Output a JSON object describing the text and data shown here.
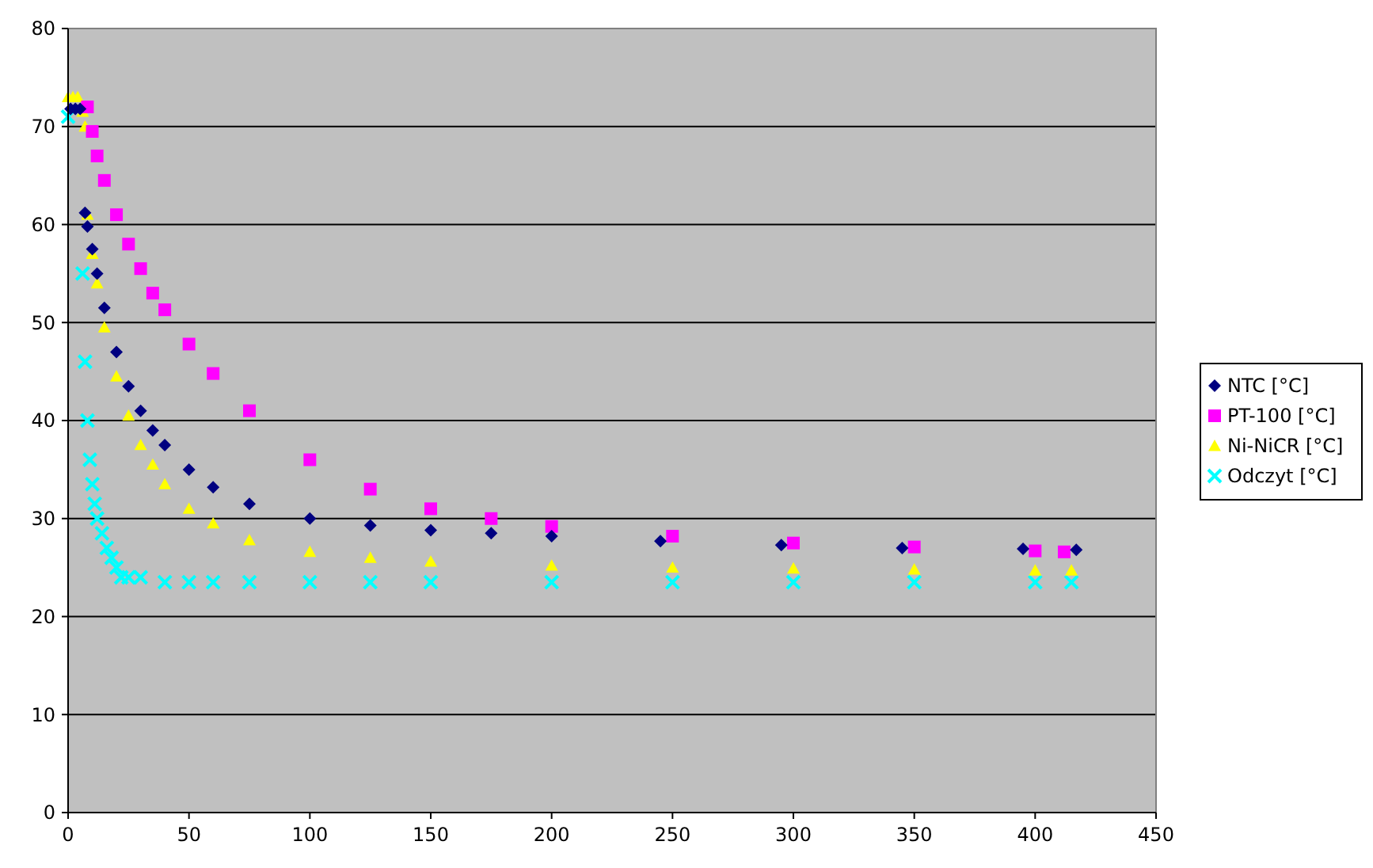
{
  "chart_data": {
    "type": "scatter",
    "xlim": [
      0,
      450
    ],
    "ylim": [
      0,
      80
    ],
    "xticks": [
      0,
      50,
      100,
      150,
      200,
      250,
      300,
      350,
      400,
      450
    ],
    "yticks": [
      0,
      10,
      20,
      30,
      40,
      50,
      60,
      70,
      80
    ],
    "grid": "y",
    "legend": "right",
    "series": [
      {
        "name": "NTC [°C]",
        "color": "#000080",
        "marker": "diamond",
        "x": [
          1,
          3,
          5,
          7,
          8,
          10,
          12,
          15,
          20,
          25,
          30,
          35,
          40,
          50,
          60,
          75,
          100,
          125,
          150,
          175,
          200,
          245,
          295,
          345,
          395,
          417
        ],
        "values": [
          71.8,
          71.8,
          71.8,
          61.2,
          59.8,
          57.5,
          55,
          51.5,
          47,
          43.5,
          41,
          39,
          37.5,
          35,
          33.2,
          31.5,
          30,
          29.3,
          28.8,
          28.5,
          28.2,
          27.7,
          27.3,
          27,
          26.9,
          26.8
        ]
      },
      {
        "name": "PT-100 [°C]",
        "color": "#ff00ff",
        "marker": "square",
        "x": [
          8,
          10,
          12,
          15,
          20,
          25,
          30,
          35,
          40,
          50,
          60,
          75,
          100,
          125,
          150,
          175,
          200,
          250,
          300,
          350,
          400,
          412
        ],
        "values": [
          72,
          69.5,
          67,
          64.5,
          61,
          58,
          55.5,
          53,
          51.3,
          47.8,
          44.8,
          41,
          36,
          33,
          31,
          30,
          29.2,
          28.2,
          27.5,
          27.1,
          26.7,
          26.6
        ]
      },
      {
        "name": "Ni-NiCR [°C]",
        "color": "#ffff00",
        "marker": "triangle",
        "x": [
          0,
          2,
          4,
          6,
          7,
          8,
          10,
          12,
          15,
          20,
          25,
          30,
          35,
          40,
          50,
          60,
          75,
          100,
          125,
          150,
          200,
          250,
          300,
          350,
          400,
          415
        ],
        "values": [
          73,
          73,
          73,
          71.5,
          70,
          61,
          57,
          54,
          49.5,
          44.5,
          40.5,
          37.5,
          35.5,
          33.5,
          31,
          29.5,
          27.8,
          26.6,
          26,
          25.6,
          25.2,
          25,
          24.9,
          24.8,
          24.7,
          24.7
        ]
      },
      {
        "name": "Odczyt [°C]",
        "color": "#00ffff",
        "marker": "cross",
        "x": [
          0,
          6,
          7,
          8,
          9,
          10,
          11,
          12,
          14,
          16,
          18,
          20,
          22,
          25,
          30,
          40,
          50,
          60,
          75,
          100,
          125,
          150,
          200,
          250,
          300,
          350,
          400,
          415
        ],
        "values": [
          71,
          55,
          46,
          40,
          36,
          33.5,
          31.5,
          30,
          28.5,
          27,
          26,
          25,
          24,
          24,
          24,
          23.5,
          23.5,
          23.5,
          23.5,
          23.5,
          23.5,
          23.5,
          23.5,
          23.5,
          23.5,
          23.5,
          23.5,
          23.5
        ]
      }
    ]
  }
}
